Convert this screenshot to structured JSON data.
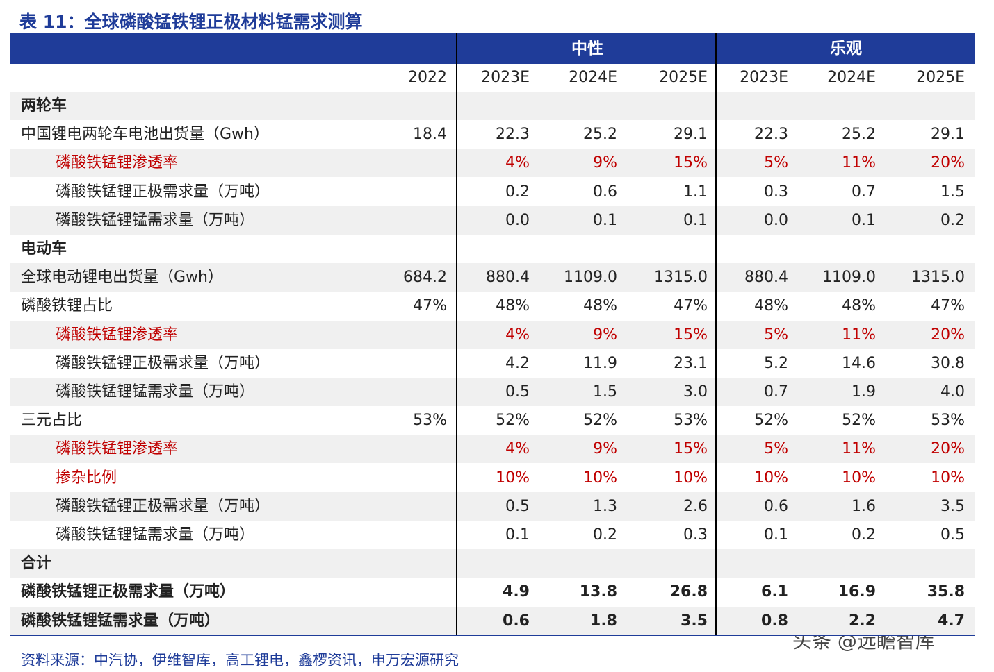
{
  "title": "表 11：全球磷酸锰铁锂正极材料锰需求测算",
  "header": {
    "groups": [
      "中性",
      "乐观"
    ],
    "years": [
      "2022",
      "2023E",
      "2024E",
      "2025E",
      "2023E",
      "2024E",
      "2025E"
    ]
  },
  "rows": [
    {
      "label": "两轮车"
    },
    {
      "label": "中国锂电两轮车电池出货量（Gwh）",
      "values": [
        "18.4",
        "22.3",
        "25.2",
        "29.1",
        "22.3",
        "25.2",
        "29.1"
      ]
    },
    {
      "label": "磷酸铁锰锂渗透率",
      "values": [
        null,
        "4%",
        "9%",
        "15%",
        "5%",
        "11%",
        "20%"
      ]
    },
    {
      "label": "磷酸铁锰锂正极需求量（万吨）",
      "values": [
        null,
        "0.2",
        "0.6",
        "1.1",
        "0.3",
        "0.7",
        "1.5"
      ]
    },
    {
      "label": "磷酸铁锰锂锰需求量（万吨）",
      "values": [
        null,
        "0.0",
        "0.1",
        "0.1",
        "0.0",
        "0.1",
        "0.2"
      ]
    },
    {
      "label": "电动车"
    },
    {
      "label": "全球电动锂电出货量（Gwh）",
      "values": [
        "684.2",
        "880.4",
        "1109.0",
        "1315.0",
        "880.4",
        "1109.0",
        "1315.0"
      ]
    },
    {
      "label": "磷酸铁锂占比",
      "values": [
        "47%",
        "48%",
        "48%",
        "47%",
        "48%",
        "48%",
        "47%"
      ]
    },
    {
      "label": "磷酸铁锰锂渗透率",
      "values": [
        null,
        "4%",
        "9%",
        "15%",
        "5%",
        "11%",
        "20%"
      ]
    },
    {
      "label": "磷酸铁锰锂正极需求量（万吨）",
      "values": [
        null,
        "4.2",
        "11.9",
        "23.1",
        "5.2",
        "14.6",
        "30.8"
      ]
    },
    {
      "label": "磷酸铁锰锂锰需求量（万吨）",
      "values": [
        null,
        "0.5",
        "1.5",
        "3.0",
        "0.7",
        "1.9",
        "4.0"
      ]
    },
    {
      "label": "三元占比",
      "values": [
        "53%",
        "52%",
        "52%",
        "53%",
        "52%",
        "52%",
        "53%"
      ]
    },
    {
      "label": "磷酸铁锰锂渗透率",
      "values": [
        null,
        "4%",
        "9%",
        "15%",
        "5%",
        "11%",
        "20%"
      ]
    },
    {
      "label": "掺杂比例",
      "values": [
        null,
        "10%",
        "10%",
        "10%",
        "10%",
        "10%",
        "10%"
      ]
    },
    {
      "label": "磷酸铁锰锂正极需求量（万吨）",
      "values": [
        null,
        "0.5",
        "1.3",
        "2.6",
        "0.6",
        "1.6",
        "3.5"
      ]
    },
    {
      "label": "磷酸铁锰锂锰需求量（万吨）",
      "values": [
        null,
        "0.1",
        "0.2",
        "0.3",
        "0.1",
        "0.2",
        "0.5"
      ]
    },
    {
      "label": "合计"
    },
    {
      "label": "磷酸铁锰锂正极需求量（万吨）",
      "values": [
        null,
        "4.9",
        "13.8",
        "26.8",
        "6.1",
        "16.9",
        "35.8"
      ]
    },
    {
      "label": "磷酸铁锰锂锰需求量（万吨）",
      "values": [
        null,
        "0.6",
        "1.8",
        "3.5",
        "0.8",
        "2.2",
        "4.7"
      ]
    }
  ],
  "source": "资料来源：中汽协，伊维智库，高工锂电，鑫椤资讯，申万宏源研究",
  "watermark": "头条 @远瞻智库"
}
